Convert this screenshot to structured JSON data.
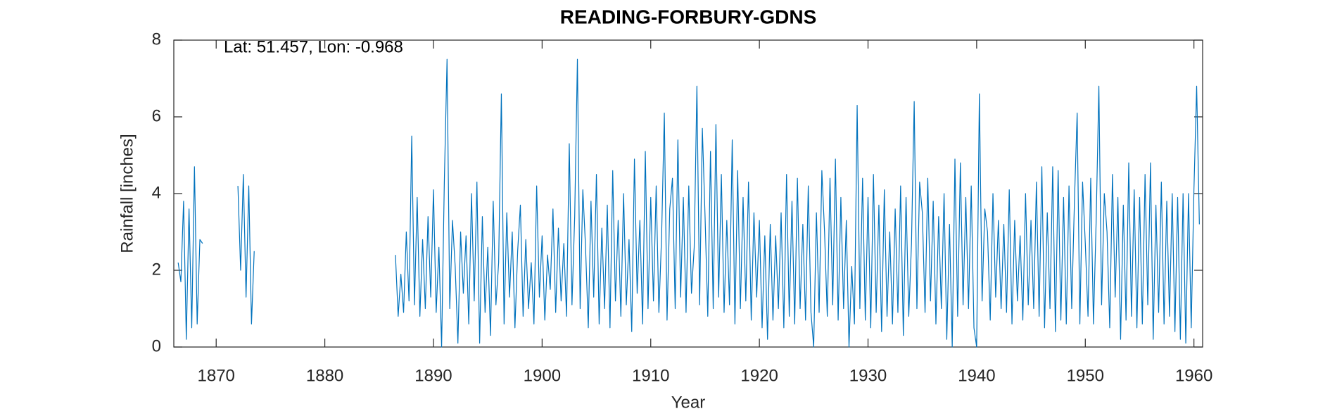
{
  "chart_data": {
    "type": "line",
    "title": "READING-FORBURY-GDNS",
    "annotation": "Lat: 51.457, Lon: -0.968",
    "xlabel": "Year",
    "ylabel": "Rainfall [inches]",
    "color": "#0072BD",
    "xlim": [
      1866.1,
      1960.8
    ],
    "xticks": [
      1870,
      1880,
      1890,
      1900,
      1910,
      1920,
      1930,
      1940,
      1950,
      1960
    ],
    "ylim": [
      0,
      8
    ],
    "yticks": [
      0,
      2,
      4,
      6,
      8
    ],
    "x": [
      1866.5,
      1866.75,
      1867,
      1867.25,
      1867.5,
      1867.75,
      1868,
      1868.25,
      1868.5,
      1868.75,
      1869,
      1872,
      1872.25,
      1872.5,
      1872.75,
      1873,
      1873.25,
      1873.5,
      1880,
      1886.5,
      1886.75,
      1887,
      1887.25,
      1887.5,
      1887.75,
      1888,
      1888.25,
      1888.5,
      1888.75,
      1889,
      1889.25,
      1889.5,
      1889.75,
      1890,
      1890.25,
      1890.5,
      1890.75,
      1891,
      1891.25,
      1891.5,
      1891.75,
      1892,
      1892.25,
      1892.5,
      1892.75,
      1893,
      1893.25,
      1893.5,
      1893.75,
      1894,
      1894.25,
      1894.5,
      1894.75,
      1895,
      1895.25,
      1895.5,
      1895.75,
      1896,
      1896.25,
      1896.5,
      1896.75,
      1897,
      1897.25,
      1897.5,
      1897.75,
      1898,
      1898.25,
      1898.5,
      1898.75,
      1899,
      1899.25,
      1899.5,
      1899.75,
      1900,
      1900.25,
      1900.5,
      1900.75,
      1901,
      1901.25,
      1901.5,
      1901.75,
      1902,
      1902.25,
      1902.5,
      1902.75,
      1903,
      1903.25,
      1903.5,
      1903.75,
      1904,
      1904.25,
      1904.5,
      1904.75,
      1905,
      1905.25,
      1905.5,
      1905.75,
      1906,
      1906.25,
      1906.5,
      1906.75,
      1907,
      1907.25,
      1907.5,
      1907.75,
      1908,
      1908.25,
      1908.5,
      1908.75,
      1909,
      1909.25,
      1909.5,
      1909.75,
      1910,
      1910.25,
      1910.5,
      1910.75,
      1911,
      1911.25,
      1911.5,
      1911.75,
      1912,
      1912.25,
      1912.5,
      1912.75,
      1913,
      1913.25,
      1913.5,
      1913.75,
      1914,
      1914.25,
      1914.5,
      1914.75,
      1915,
      1915.25,
      1915.5,
      1915.75,
      1916,
      1916.25,
      1916.5,
      1916.75,
      1917,
      1917.25,
      1917.5,
      1917.75,
      1918,
      1918.25,
      1918.5,
      1918.75,
      1919,
      1919.25,
      1919.5,
      1919.75,
      1920,
      1920.25,
      1920.5,
      1920.75,
      1921,
      1921.25,
      1921.5,
      1921.75,
      1922,
      1922.25,
      1922.5,
      1922.75,
      1923,
      1923.25,
      1923.5,
      1923.75,
      1924,
      1924.25,
      1924.5,
      1924.75,
      1925,
      1925.25,
      1925.5,
      1925.75,
      1926,
      1926.25,
      1926.5,
      1926.75,
      1927,
      1927.25,
      1927.5,
      1927.75,
      1928,
      1928.25,
      1928.5,
      1928.75,
      1929,
      1929.25,
      1929.5,
      1929.75,
      1930,
      1930.25,
      1930.5,
      1930.75,
      1931,
      1931.25,
      1931.5,
      1931.75,
      1932,
      1932.25,
      1932.5,
      1932.75,
      1933,
      1933.25,
      1933.5,
      1933.75,
      1934,
      1934.25,
      1934.5,
      1934.75,
      1935,
      1935.25,
      1935.5,
      1935.75,
      1936,
      1936.25,
      1936.5,
      1936.75,
      1937,
      1937.25,
      1937.5,
      1937.75,
      1938,
      1938.25,
      1938.5,
      1938.75,
      1939,
      1939.25,
      1939.5,
      1939.75,
      1940,
      1940.25,
      1940.5,
      1940.75,
      1941,
      1941.25,
      1941.5,
      1941.75,
      1942,
      1942.25,
      1942.5,
      1942.75,
      1943,
      1943.25,
      1943.5,
      1943.75,
      1944,
      1944.25,
      1944.5,
      1944.75,
      1945,
      1945.25,
      1945.5,
      1945.75,
      1946,
      1946.25,
      1946.5,
      1946.75,
      1947,
      1947.25,
      1947.5,
      1947.75,
      1948,
      1948.25,
      1948.5,
      1948.75,
      1949,
      1949.25,
      1949.5,
      1949.75,
      1950,
      1950.25,
      1950.5,
      1950.75,
      1951,
      1951.25,
      1951.5,
      1951.75,
      1952,
      1952.25,
      1952.5,
      1952.75,
      1953,
      1953.25,
      1953.5,
      1953.75,
      1954,
      1954.25,
      1954.5,
      1954.75,
      1955,
      1955.25,
      1955.5,
      1955.75,
      1956,
      1956.25,
      1956.5,
      1956.75,
      1957,
      1957.25,
      1957.5,
      1957.75,
      1958,
      1958.25,
      1958.5,
      1958.75,
      1959,
      1959.25,
      1959.5,
      1959.75,
      1960,
      1960.25,
      1960.5
    ],
    "values": [
      2.2,
      1.7,
      3.8,
      0.2,
      3.6,
      0.5,
      4.7,
      0.6,
      2.8,
      2.7,
      null,
      4.2,
      2.0,
      4.5,
      1.3,
      4.2,
      0.6,
      2.5,
      null,
      2.4,
      0.8,
      1.9,
      0.9,
      3.0,
      1.2,
      5.5,
      1.1,
      3.9,
      0.8,
      2.8,
      1.0,
      3.4,
      1.3,
      4.1,
      0.9,
      2.6,
      0.0,
      4.3,
      7.5,
      1.0,
      3.3,
      2.1,
      0.1,
      3.0,
      1.4,
      2.9,
      0.6,
      4.0,
      1.2,
      4.3,
      0.1,
      3.4,
      0.9,
      2.6,
      0.3,
      3.8,
      1.1,
      2.2,
      6.6,
      0.6,
      3.5,
      1.3,
      3.0,
      0.5,
      2.5,
      3.7,
      0.8,
      2.8,
      1.0,
      2.2,
      0.6,
      4.2,
      1.3,
      2.9,
      0.7,
      2.4,
      1.5,
      3.6,
      0.9,
      3.1,
      1.2,
      2.7,
      0.8,
      5.3,
      1.1,
      3.4,
      7.5,
      1.0,
      4.1,
      2.6,
      0.5,
      3.8,
      1.3,
      4.5,
      0.6,
      3.1,
      1.0,
      3.7,
      0.5,
      4.6,
      1.2,
      3.3,
      0.8,
      4.0,
      1.1,
      2.8,
      0.4,
      4.9,
      1.4,
      3.3,
      0.6,
      5.1,
      1.0,
      3.9,
      1.2,
      4.2,
      0.9,
      2.9,
      6.1,
      0.7,
      3.6,
      4.4,
      1.0,
      5.4,
      1.3,
      3.9,
      0.9,
      4.2,
      1.4,
      2.6,
      6.8,
      1.1,
      5.7,
      3.4,
      0.8,
      5.1,
      1.0,
      5.8,
      1.3,
      4.5,
      0.9,
      3.3,
      1.1,
      5.4,
      0.6,
      4.6,
      1.0,
      3.9,
      1.2,
      4.3,
      0.7,
      3.5,
      1.3,
      3.3,
      0.5,
      2.9,
      0.2,
      3.2,
      0.7,
      2.9,
      1.0,
      3.5,
      0.5,
      4.5,
      0.8,
      3.8,
      0.6,
      4.4,
      1.0,
      3.2,
      0.7,
      4.2,
      0.9,
      0.0,
      3.5,
      0.9,
      4.6,
      3.0,
      0.8,
      4.4,
      1.1,
      4.9,
      0.7,
      3.9,
      1.0,
      3.3,
      0.0,
      2.1,
      0.6,
      6.3,
      1.0,
      4.4,
      0.7,
      3.9,
      0.5,
      4.5,
      0.9,
      3.7,
      0.4,
      4.1,
      0.8,
      3.0,
      0.6,
      3.6,
      0.9,
      4.2,
      0.3,
      3.9,
      0.8,
      2.7,
      6.4,
      1.0,
      4.3,
      3.5,
      0.9,
      4.4,
      1.2,
      3.8,
      0.6,
      3.4,
      1.0,
      4.0,
      0.2,
      3.2,
      0.0,
      4.9,
      0.8,
      4.8,
      1.1,
      3.9,
      1.0,
      4.2,
      0.5,
      0.0,
      6.6,
      1.2,
      3.6,
      3.0,
      0.7,
      4.0,
      1.3,
      3.3,
      1.0,
      3.2,
      0.9,
      4.1,
      0.6,
      3.3,
      1.2,
      2.9,
      0.7,
      4.0,
      1.1,
      3.3,
      1.0,
      4.3,
      0.8,
      4.7,
      0.5,
      3.5,
      1.0,
      4.7,
      0.4,
      4.6,
      0.7,
      3.9,
      0.6,
      4.2,
      1.0,
      3.8,
      6.1,
      0.6,
      4.3,
      2.7,
      0.8,
      4.4,
      0.6,
      3.3,
      6.8,
      1.1,
      4.0,
      3.0,
      0.5,
      4.5,
      1.3,
      3.9,
      0.2,
      3.7,
      0.7,
      4.8,
      0.8,
      4.1,
      0.5,
      3.9,
      0.6,
      4.5,
      1.1,
      4.8,
      0.2,
      3.7,
      0.9,
      4.3,
      0.6,
      3.8,
      0.8,
      4.0,
      0.4,
      3.9,
      0.2,
      4.0,
      0.1,
      4.0,
      0.5,
      4.1,
      6.8,
      3.2
    ]
  }
}
